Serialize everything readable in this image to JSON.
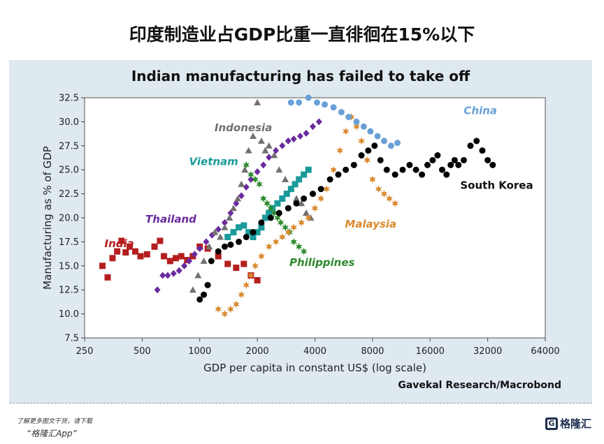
{
  "headline": "印度制造业占GDP比重一直徘徊在15%以下",
  "footer": {
    "note": "了解更多图文干货，请下载",
    "app": "“格隆汇App”",
    "logo": "格隆汇"
  },
  "chart_data": {
    "type": "scatter",
    "title": "Indian manufacturing has failed to take off",
    "source": "Gavekal Research/Macrobond",
    "xlabel": "GDP per capita in constant US$ (log scale)",
    "ylabel": "Manufacturing as % of GDP",
    "xscale": "log2",
    "xlim": [
      250,
      64000
    ],
    "ylim": [
      7.5,
      32.5
    ],
    "xticks": [
      250,
      500,
      1000,
      2000,
      4000,
      8000,
      16000,
      32000,
      64000
    ],
    "yticks": [
      7.5,
      10.0,
      12.5,
      15.0,
      17.5,
      20.0,
      22.5,
      25.0,
      27.5,
      30.0,
      32.5
    ],
    "grid": false,
    "series": [
      {
        "name": "India",
        "marker": "square",
        "color": "#b51e1e",
        "x": [
          310,
          330,
          350,
          370,
          390,
          410,
          430,
          460,
          490,
          530,
          580,
          620,
          650,
          700,
          750,
          800,
          860,
          920,
          1000,
          1100,
          1250,
          1400,
          1550,
          1700,
          1850,
          2000
        ],
        "y": [
          15.0,
          13.8,
          15.8,
          16.5,
          17.6,
          16.4,
          17.0,
          16.5,
          16.0,
          16.2,
          17.0,
          17.6,
          16.0,
          15.5,
          15.8,
          16.0,
          15.6,
          16.0,
          17.0,
          16.8,
          16.0,
          15.2,
          14.8,
          15.2,
          14.0,
          13.5
        ]
      },
      {
        "name": "Thailand",
        "marker": "diamond",
        "color": "#6a2a9e",
        "x": [
          600,
          640,
          680,
          730,
          780,
          830,
          880,
          940,
          1000,
          1080,
          1160,
          1250,
          1350,
          1450,
          1550,
          1650,
          1750,
          1850,
          2000,
          2150,
          2300,
          2500,
          2700,
          2900,
          3100,
          3350,
          3600,
          3900,
          4200
        ],
        "y": [
          12.5,
          14.0,
          14.0,
          14.2,
          14.5,
          15.0,
          15.5,
          16.2,
          16.8,
          17.5,
          18.2,
          18.8,
          19.5,
          20.5,
          21.5,
          22.3,
          23.2,
          24.0,
          24.8,
          25.5,
          26.3,
          27.0,
          27.5,
          28.0,
          28.2,
          28.5,
          28.8,
          29.5,
          30.0
        ]
      },
      {
        "name": "Indonesia",
        "marker": "triangle",
        "color": "#707070",
        "x": [
          920,
          980,
          1050,
          1120,
          1200,
          1280,
          1350,
          1430,
          1500,
          1580,
          1650,
          1720,
          1800,
          1900,
          2000,
          2100,
          2200,
          2300,
          2450,
          2600,
          2800,
          3000,
          3200,
          3400,
          3600,
          3800
        ],
        "y": [
          12.5,
          14.0,
          15.5,
          17.0,
          18.5,
          18.0,
          19.0,
          20.0,
          21.0,
          22.0,
          23.5,
          25.0,
          27.0,
          28.5,
          32.0,
          28.0,
          27.0,
          27.5,
          26.5,
          25.0,
          24.0,
          23.0,
          22.0,
          21.5,
          20.5,
          20.0
        ]
      },
      {
        "name": "Vietnam",
        "marker": "square",
        "color": "#1a9a9a",
        "x": [
          1400,
          1500,
          1600,
          1700,
          1800,
          1900,
          2000,
          2100,
          2200,
          2300,
          2400,
          2550,
          2700,
          2850,
          3000,
          3150,
          3300,
          3500,
          3700
        ],
        "y": [
          18.0,
          18.5,
          19.0,
          19.2,
          18.5,
          18.0,
          18.5,
          19.0,
          20.0,
          20.5,
          21.0,
          21.5,
          22.0,
          22.5,
          23.0,
          23.5,
          24.0,
          24.5,
          25.0
        ]
      },
      {
        "name": "Philippines",
        "marker": "star",
        "color": "#2e8b2e",
        "x": [
          1750,
          1850,
          1950,
          2050,
          2150,
          2250,
          2350,
          2450,
          2550,
          2650,
          2800,
          2950,
          3100,
          3300,
          3500
        ],
        "y": [
          25.5,
          24.5,
          24.0,
          23.5,
          22.0,
          21.5,
          21.0,
          20.5,
          20.0,
          19.5,
          19.0,
          18.5,
          17.5,
          17.0,
          16.5
        ]
      },
      {
        "name": "Malaysia",
        "marker": "star",
        "color": "#d98a2e",
        "x": [
          1250,
          1350,
          1450,
          1550,
          1650,
          1750,
          1850,
          1950,
          2100,
          2300,
          2500,
          2700,
          2900,
          3100,
          3400,
          3700,
          4000,
          4300,
          4600,
          5000,
          5400,
          5800,
          6200,
          6600,
          7000,
          7500,
          8000,
          8600,
          9200,
          9800,
          10500
        ],
        "y": [
          10.5,
          10.0,
          10.5,
          11.0,
          12.0,
          13.0,
          14.0,
          15.0,
          16.0,
          17.0,
          17.5,
          18.0,
          18.5,
          19.0,
          19.5,
          20.0,
          21.0,
          22.0,
          23.0,
          25.0,
          27.0,
          29.0,
          30.5,
          29.5,
          28.0,
          26.0,
          24.0,
          23.0,
          22.5,
          22.0,
          21.5
        ]
      },
      {
        "name": "South Korea",
        "marker": "circle",
        "color": "#000000",
        "x": [
          1000,
          1050,
          1100,
          1150,
          1250,
          1350,
          1450,
          1600,
          1750,
          1900,
          2100,
          2350,
          2600,
          2900,
          3200,
          3500,
          3900,
          4300,
          4800,
          5300,
          5800,
          6400,
          7000,
          7600,
          8200,
          8800,
          9500,
          10500,
          11500,
          12500,
          13500,
          14500,
          15500,
          16500,
          17500,
          18500,
          19500,
          20500,
          21500,
          22500,
          24000,
          26000,
          28000,
          30000,
          32000,
          34000
        ],
        "y": [
          11.5,
          12.0,
          13.0,
          15.5,
          16.5,
          17.0,
          17.2,
          17.5,
          18.0,
          18.5,
          19.5,
          20.0,
          20.5,
          21.0,
          21.5,
          22.0,
          22.5,
          23.0,
          24.0,
          24.5,
          25.0,
          25.5,
          26.5,
          27.0,
          27.5,
          26.0,
          25.0,
          24.5,
          25.0,
          25.5,
          25.0,
          24.5,
          25.5,
          26.0,
          26.5,
          25.0,
          24.5,
          25.5,
          26.0,
          25.5,
          26.0,
          27.5,
          28.0,
          27.0,
          26.0,
          25.5
        ]
      },
      {
        "name": "China",
        "marker": "circle",
        "color": "#6aa0d8",
        "x": [
          3000,
          3300,
          3700,
          4100,
          4500,
          5000,
          5500,
          6000,
          6600,
          7200,
          7800,
          8500,
          9200,
          10000,
          10800
        ],
        "y": [
          32.0,
          32.0,
          32.5,
          32.0,
          31.8,
          31.5,
          31.0,
          30.5,
          30.0,
          29.5,
          29.0,
          28.5,
          28.0,
          27.5,
          27.8
        ]
      }
    ]
  }
}
